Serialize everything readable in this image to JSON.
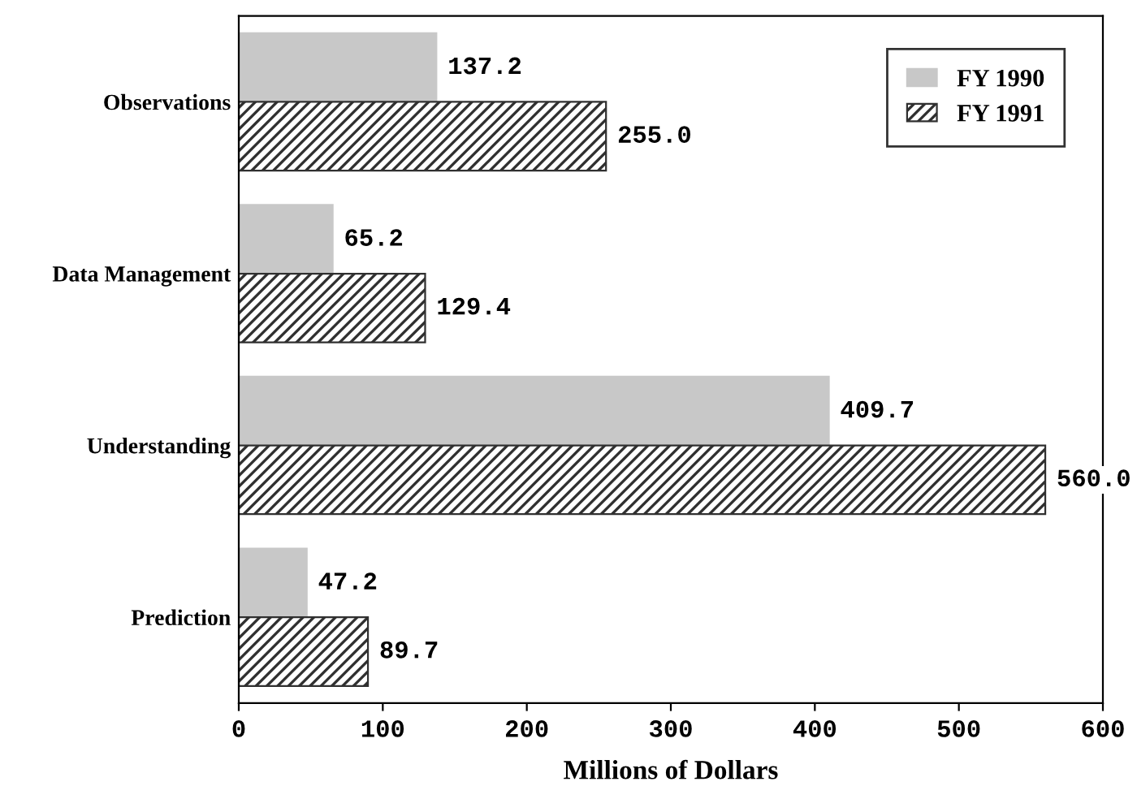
{
  "chart_data": {
    "type": "bar",
    "orientation": "horizontal",
    "xlabel": "Millions of Dollars",
    "categories": [
      "Observations",
      "Data Management",
      "Understanding",
      "Prediction"
    ],
    "series": [
      {
        "name": "FY 1990",
        "color": "#c8c8c8",
        "values": [
          137.2,
          65.2,
          409.7,
          47.2
        ],
        "value_labels": [
          "137.2",
          "65.2",
          "409.7",
          "47.2"
        ]
      },
      {
        "name": "FY 1991",
        "color": "#303030",
        "values": [
          255.0,
          129.4,
          560.0,
          89.7
        ],
        "value_labels": [
          "255.0",
          "129.4",
          "560.0",
          "89.7"
        ]
      }
    ],
    "xlim": [
      0,
      600
    ],
    "xticks": [
      0,
      100,
      200,
      300,
      400,
      500,
      600
    ],
    "grid": false,
    "legend": "top right"
  }
}
